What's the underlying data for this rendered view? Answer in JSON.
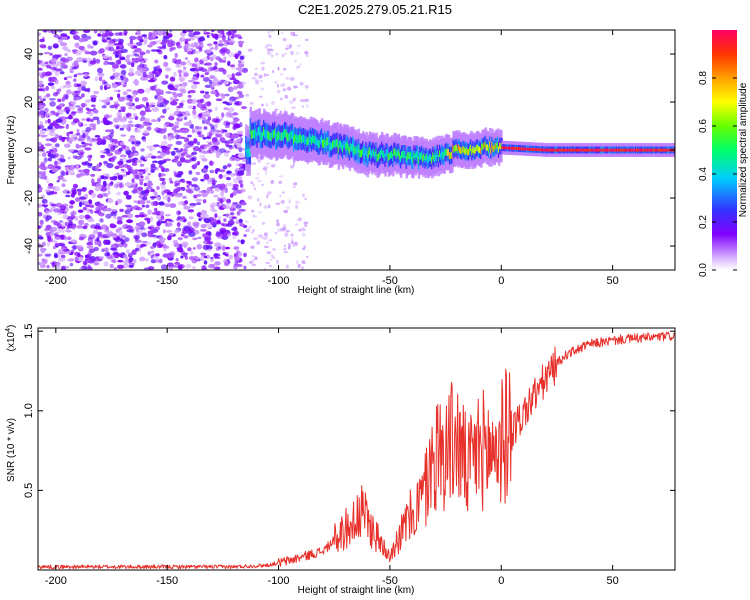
{
  "title": "C2E1.2025.279.05.21.R15",
  "chart_data": [
    {
      "type": "heatmap",
      "title": "C2E1.2025.279.05.21.R15",
      "xlabel": "Height of straight line (km)",
      "ylabel": "Frequency (Hz)",
      "xlim": [
        -208,
        78
      ],
      "ylim": [
        -50,
        50
      ],
      "x_ticks": [
        -200,
        -150,
        -100,
        -50,
        0,
        50
      ],
      "y_ticks": [
        -40,
        -20,
        0,
        20,
        40
      ],
      "colorbar": {
        "label": "Normalized spectral amplitude",
        "range": [
          0,
          1
        ],
        "ticks": [
          0.0,
          0.2,
          0.4,
          0.6,
          0.8
        ],
        "tick_labels": [
          "0.0",
          "0.2",
          "0.4",
          "0.6",
          "0.8"
        ],
        "colors": [
          "#ffffff",
          "#d9b3ff",
          "#8000ff",
          "#3333ff",
          "#00ccff",
          "#00ff66",
          "#66ff00",
          "#ffff00",
          "#ffa000",
          "#ff3300",
          "#ff0066"
        ]
      },
      "features": {
        "noise_region_x": [
          -208,
          -115
        ],
        "signal_start_x": -115,
        "center_frequency_track": [
          {
            "x": -113,
            "y": 7
          },
          {
            "x": -100,
            "y": 6
          },
          {
            "x": -90,
            "y": 5
          },
          {
            "x": -80,
            "y": 3
          },
          {
            "x": -70,
            "y": 1
          },
          {
            "x": -60,
            "y": -2
          },
          {
            "x": -50,
            "y": -2
          },
          {
            "x": -40,
            "y": -3
          },
          {
            "x": -30,
            "y": -3
          },
          {
            "x": -20,
            "y": 0
          },
          {
            "x": -10,
            "y": 1
          },
          {
            "x": 0,
            "y": 1
          },
          {
            "x": 20,
            "y": 0
          },
          {
            "x": 50,
            "y": 0
          },
          {
            "x": 78,
            "y": 0
          }
        ]
      }
    },
    {
      "type": "line",
      "xlabel": "Height of straight line (km)",
      "ylabel": "SNR (10 * v/v)",
      "y_scale_note": "(x10^4)",
      "y_scale_base": "(x10",
      "y_scale_exp": "4",
      "y_scale_close": ")",
      "xlim": [
        -208,
        78
      ],
      "ylim": [
        0,
        1.52
      ],
      "x_ticks": [
        -200,
        -150,
        -100,
        -50,
        0,
        50
      ],
      "y_ticks": [
        0.5,
        1.0,
        1.5
      ],
      "y_tick_labels": [
        "0.5",
        "1.0",
        "1.5"
      ],
      "series": [
        {
          "name": "SNR",
          "color": "#e8302a",
          "envelope": [
            {
              "x": -208,
              "y": 0.02
            },
            {
              "x": -120,
              "y": 0.02
            },
            {
              "x": -105,
              "y": 0.03
            },
            {
              "x": -95,
              "y": 0.06
            },
            {
              "x": -80,
              "y": 0.12
            },
            {
              "x": -70,
              "y": 0.25
            },
            {
              "x": -62,
              "y": 0.35
            },
            {
              "x": -55,
              "y": 0.18
            },
            {
              "x": -50,
              "y": 0.1
            },
            {
              "x": -42,
              "y": 0.3
            },
            {
              "x": -35,
              "y": 0.45
            },
            {
              "x": -30,
              "y": 0.7
            },
            {
              "x": -25,
              "y": 0.75
            },
            {
              "x": -20,
              "y": 0.8
            },
            {
              "x": -15,
              "y": 0.6
            },
            {
              "x": -10,
              "y": 0.75
            },
            {
              "x": -5,
              "y": 0.72
            },
            {
              "x": 0,
              "y": 0.78
            },
            {
              "x": 5,
              "y": 0.88
            },
            {
              "x": 10,
              "y": 0.98
            },
            {
              "x": 15,
              "y": 1.1
            },
            {
              "x": 20,
              "y": 1.2
            },
            {
              "x": 25,
              "y": 1.3
            },
            {
              "x": 30,
              "y": 1.36
            },
            {
              "x": 40,
              "y": 1.42
            },
            {
              "x": 55,
              "y": 1.45
            },
            {
              "x": 78,
              "y": 1.47
            }
          ]
        }
      ]
    }
  ]
}
